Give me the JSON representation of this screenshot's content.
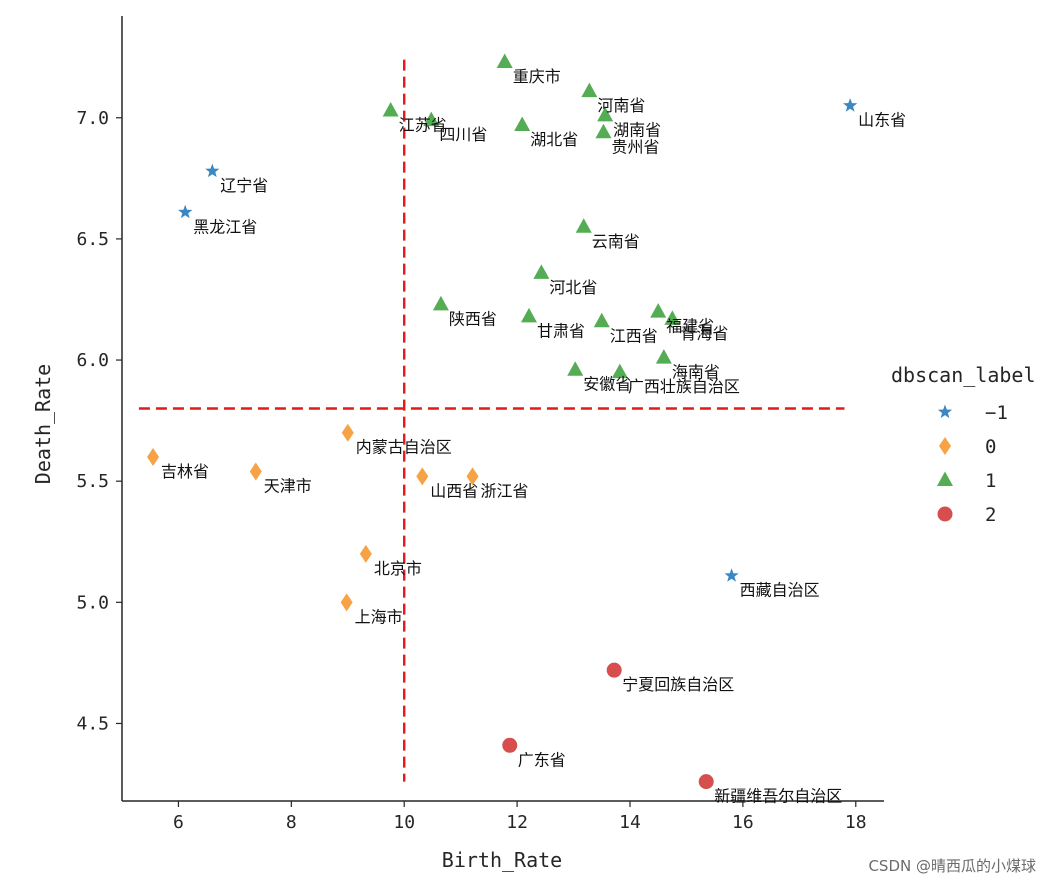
{
  "chart_data": {
    "type": "scatter",
    "xlabel": "Birth_Rate",
    "ylabel": "Death_Rate",
    "xlim": [
      5.0,
      18.5
    ],
    "ylim": [
      4.18,
      7.42
    ],
    "xticks": [
      6,
      8,
      10,
      12,
      14,
      16,
      18
    ],
    "yticks": [
      4.5,
      5.0,
      5.5,
      6.0,
      6.5,
      7.0
    ],
    "xtick_labels": [
      "6",
      "8",
      "10",
      "12",
      "14",
      "16",
      "18"
    ],
    "ytick_labels": [
      "4.5",
      "5.0",
      "5.5",
      "6.0",
      "6.5",
      "7.0"
    ],
    "reference_lines": [
      {
        "orientation": "vertical",
        "value": 10,
        "range": [
          4.26,
          7.24
        ],
        "color": "#e31a1c",
        "style": "dashed"
      },
      {
        "orientation": "horizontal",
        "value": 5.8,
        "range": [
          5.3,
          17.8
        ],
        "color": "#e31a1c",
        "style": "dashed"
      }
    ],
    "legend": {
      "title": "dbscan_label",
      "position": "right",
      "entries": [
        {
          "label": "−1",
          "cluster": -1,
          "marker": "star",
          "color": "#3a87c2"
        },
        {
          "label": "0",
          "cluster": 0,
          "marker": "diamond",
          "color": "#f59a35"
        },
        {
          "label": "1",
          "cluster": 1,
          "marker": "triangle",
          "color": "#45a545"
        },
        {
          "label": "2",
          "cluster": 2,
          "marker": "circle",
          "color": "#d23f3f"
        }
      ]
    },
    "points": [
      {
        "name": "重庆市",
        "x": 11.78,
        "y": 7.23,
        "cluster": 1
      },
      {
        "name": "河南省",
        "x": 13.28,
        "y": 7.11,
        "cluster": 1
      },
      {
        "name": "山东省",
        "x": 17.9,
        "y": 7.05,
        "cluster": -1
      },
      {
        "name": "江苏省",
        "x": 9.76,
        "y": 7.03,
        "cluster": 1
      },
      {
        "name": "四川省",
        "x": 10.48,
        "y": 6.99,
        "cluster": 1
      },
      {
        "name": "湖北省",
        "x": 12.09,
        "y": 6.97,
        "cluster": 1
      },
      {
        "name": "湖南省",
        "x": 13.56,
        "y": 7.01,
        "cluster": 1
      },
      {
        "name": "贵州省",
        "x": 13.53,
        "y": 6.94,
        "cluster": 1
      },
      {
        "name": "辽宁省",
        "x": 6.6,
        "y": 6.78,
        "cluster": -1
      },
      {
        "name": "黑龙江省",
        "x": 6.12,
        "y": 6.61,
        "cluster": -1
      },
      {
        "name": "云南省",
        "x": 13.18,
        "y": 6.55,
        "cluster": 1
      },
      {
        "name": "河北省",
        "x": 12.43,
        "y": 6.36,
        "cluster": 1
      },
      {
        "name": "陕西省",
        "x": 10.65,
        "y": 6.23,
        "cluster": 1
      },
      {
        "name": "甘肃省",
        "x": 12.21,
        "y": 6.18,
        "cluster": 1
      },
      {
        "name": "江西省",
        "x": 13.5,
        "y": 6.16,
        "cluster": 1
      },
      {
        "name": "福建省",
        "x": 14.5,
        "y": 6.2,
        "cluster": 1
      },
      {
        "name": "青海省",
        "x": 14.75,
        "y": 6.17,
        "cluster": 1
      },
      {
        "name": "安徽省",
        "x": 13.03,
        "y": 5.96,
        "cluster": 1
      },
      {
        "name": "广西壮族自治区",
        "x": 13.82,
        "y": 5.95,
        "cluster": 1
      },
      {
        "name": "海南省",
        "x": 14.6,
        "y": 6.01,
        "cluster": 1
      },
      {
        "name": "内蒙古自治区",
        "x": 9.0,
        "y": 5.7,
        "cluster": 0
      },
      {
        "name": "吉林省",
        "x": 5.55,
        "y": 5.6,
        "cluster": 0
      },
      {
        "name": "天津市",
        "x": 7.37,
        "y": 5.54,
        "cluster": 0
      },
      {
        "name": "山西省",
        "x": 10.32,
        "y": 5.52,
        "cluster": 0
      },
      {
        "name": "浙江省",
        "x": 11.21,
        "y": 5.52,
        "cluster": 0
      },
      {
        "name": "北京市",
        "x": 9.32,
        "y": 5.2,
        "cluster": 0
      },
      {
        "name": "上海市",
        "x": 8.98,
        "y": 5.0,
        "cluster": 0
      },
      {
        "name": "西藏自治区",
        "x": 15.8,
        "y": 5.11,
        "cluster": -1
      },
      {
        "name": "宁夏回族自治区",
        "x": 13.72,
        "y": 4.72,
        "cluster": 2
      },
      {
        "name": "广东省",
        "x": 11.87,
        "y": 4.41,
        "cluster": 2
      },
      {
        "name": "新疆维吾尔自治区",
        "x": 15.35,
        "y": 4.26,
        "cluster": 2
      }
    ]
  },
  "watermark": "CSDN @晴西瓜的小煤球"
}
